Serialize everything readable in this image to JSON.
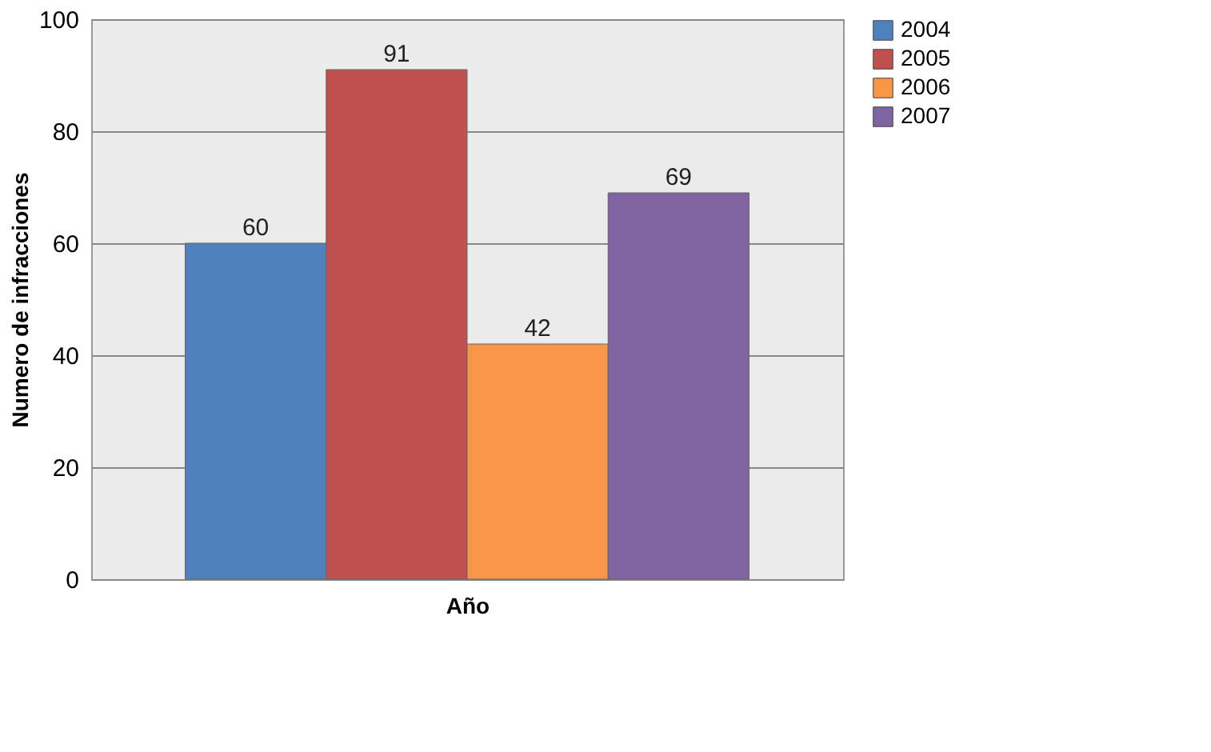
{
  "chart_data": {
    "type": "bar",
    "xlabel": "Año",
    "ylabel": "Numero de infracciones",
    "categories": [
      null
    ],
    "series": [
      {
        "name": "2004",
        "color": "#4f81bd",
        "values": [
          60
        ]
      },
      {
        "name": "2005",
        "color": "#c0504d",
        "values": [
          91
        ]
      },
      {
        "name": "2006",
        "color": "#f79646",
        "values": [
          42
        ]
      },
      {
        "name": "2007",
        "color": "#8064a2",
        "values": [
          69
        ]
      }
    ],
    "ylim": [
      0,
      100
    ],
    "yticks": [
      0,
      20,
      40,
      60,
      80,
      100
    ],
    "grid": "y",
    "legend": "right",
    "data_labels": true,
    "tick_labels": "y"
  }
}
